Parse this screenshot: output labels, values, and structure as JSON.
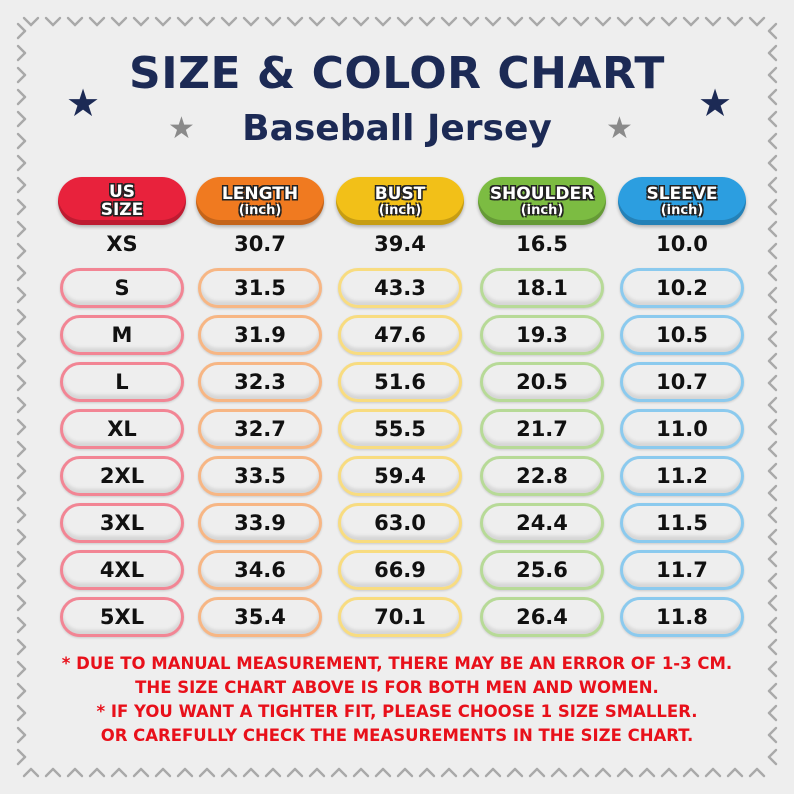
{
  "title": "SIZE & COLOR CHART",
  "subtitle": "Baseball Jersey",
  "colors": {
    "title": "#1c2a55",
    "us_size": "#e8223c",
    "length": "#f07a20",
    "bust": "#f2c018",
    "shoulder": "#7cbc42",
    "sleeve": "#2c9ee0",
    "note_text": "#e8101a"
  },
  "headers": {
    "us_size": {
      "line1": "US",
      "line2": "SIZE"
    },
    "length": {
      "line1": "LENGTH",
      "line2": "(inch)"
    },
    "bust": {
      "line1": "BUST",
      "line2": "(inch)"
    },
    "shoulder": {
      "line1": "SHOULDER",
      "line2": "(inch)"
    },
    "sleeve": {
      "line1": "SLEEVE",
      "line2": "(inch)"
    }
  },
  "rows": [
    {
      "size": "XS",
      "length": "30.7",
      "bust": "39.4",
      "shoulder": "16.5",
      "sleeve": "10.0"
    },
    {
      "size": "S",
      "length": "31.5",
      "bust": "43.3",
      "shoulder": "18.1",
      "sleeve": "10.2"
    },
    {
      "size": "M",
      "length": "31.9",
      "bust": "47.6",
      "shoulder": "19.3",
      "sleeve": "10.5"
    },
    {
      "size": "L",
      "length": "32.3",
      "bust": "51.6",
      "shoulder": "20.5",
      "sleeve": "10.7"
    },
    {
      "size": "XL",
      "length": "32.7",
      "bust": "55.5",
      "shoulder": "21.7",
      "sleeve": "11.0"
    },
    {
      "size": "2XL",
      "length": "33.5",
      "bust": "59.4",
      "shoulder": "22.8",
      "sleeve": "11.2"
    },
    {
      "size": "3XL",
      "length": "33.9",
      "bust": "63.0",
      "shoulder": "24.4",
      "sleeve": "11.5"
    },
    {
      "size": "4XL",
      "length": "34.6",
      "bust": "66.9",
      "shoulder": "25.6",
      "sleeve": "11.7"
    },
    {
      "size": "5XL",
      "length": "35.4",
      "bust": "70.1",
      "shoulder": "26.4",
      "sleeve": "11.8"
    }
  ],
  "notes": [
    "* DUE TO MANUAL MEASUREMENT, THERE MAY BE AN ERROR OF 1-3 CM.",
    "THE SIZE CHART ABOVE IS FOR BOTH MEN AND WOMEN.",
    "* IF YOU WANT A TIGHTER FIT, PLEASE CHOOSE 1 SIZE SMALLER.",
    "OR CAREFULLY CHECK THE MEASUREMENTS IN THE SIZE CHART."
  ],
  "icons": [
    "star-icon",
    "baseball-stitch-border"
  ]
}
